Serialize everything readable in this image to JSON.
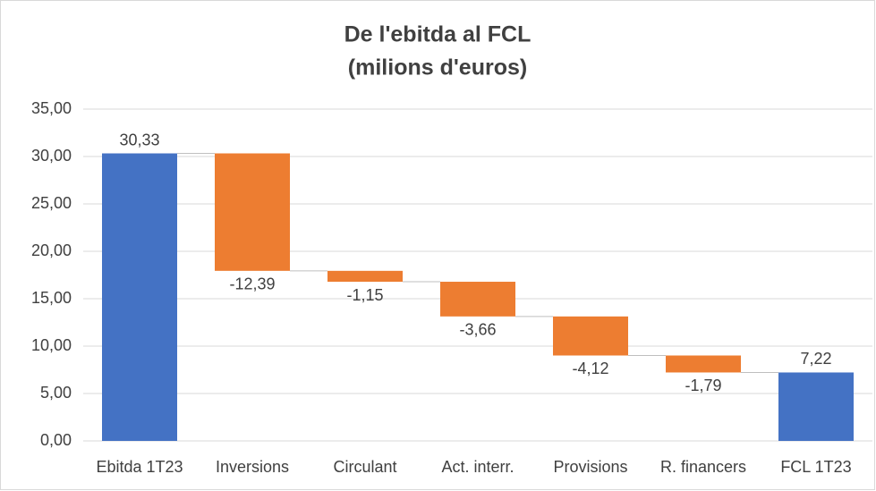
{
  "chart_data": {
    "type": "waterfall",
    "title": "De l'ebitda al FCL",
    "subtitle": "(milions d'euros)",
    "categories": [
      "Ebitda 1T23",
      "Inversions",
      "Circulant",
      "Act. interr.",
      "Provisions",
      "R. financers",
      "FCL 1T23"
    ],
    "values": [
      30.33,
      -12.39,
      -1.15,
      -3.66,
      -4.12,
      -1.79,
      7.22
    ],
    "value_labels": [
      "30,33",
      "-12,39",
      "-1,15",
      "-3,66",
      "-4,12",
      "-1,79",
      "7,22"
    ],
    "measure": [
      "absolute",
      "relative",
      "relative",
      "relative",
      "relative",
      "relative",
      "absolute"
    ],
    "colors": [
      "#4472c4",
      "#ed7d31",
      "#ed7d31",
      "#ed7d31",
      "#ed7d31",
      "#ed7d31",
      "#4472c4"
    ],
    "ylim": [
      0,
      35
    ],
    "yticks": [
      {
        "value": 0,
        "label": "0,00"
      },
      {
        "value": 5,
        "label": "5,00"
      },
      {
        "value": 10,
        "label": "10,00"
      },
      {
        "value": 15,
        "label": "15,00"
      },
      {
        "value": 20,
        "label": "20,00"
      },
      {
        "value": 25,
        "label": "25,00"
      },
      {
        "value": 30,
        "label": "30,00"
      },
      {
        "value": 35,
        "label": "35,00"
      }
    ],
    "grid": true
  }
}
